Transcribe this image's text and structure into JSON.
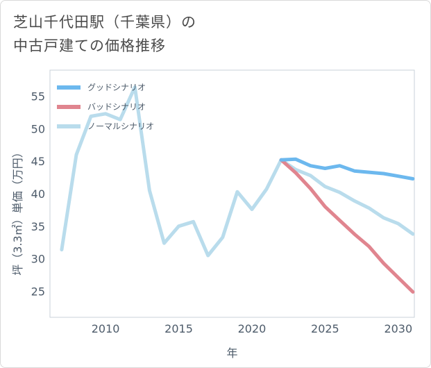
{
  "title_lines": [
    "芝山千代田駅（千葉県）の",
    "中古戸建ての価格推移"
  ],
  "chart_data": {
    "type": "line",
    "xlabel": "年",
    "ylabel": "坪（3.3㎡）単価（万円）",
    "xlim": [
      2006.2,
      2031.1
    ],
    "ylim": [
      21,
      59
    ],
    "xticks": [
      2010,
      2015,
      2020,
      2025,
      2030
    ],
    "yticks": [
      25,
      30,
      35,
      40,
      45,
      50,
      55
    ],
    "grid": true,
    "legend_position": "top-left",
    "series": [
      {
        "name": "グッドシナリオ",
        "color": "#6cb8ee",
        "x": [
          2022,
          2023,
          2024,
          2025,
          2026,
          2027,
          2028,
          2029,
          2030,
          2031
        ],
        "y": [
          45.2,
          45.3,
          44.3,
          43.9,
          44.3,
          43.5,
          43.3,
          43.1,
          42.7,
          42.3
        ]
      },
      {
        "name": "バッドシナリオ",
        "color": "#e0858f",
        "x": [
          2022,
          2023,
          2024,
          2025,
          2026,
          2027,
          2028,
          2029,
          2030,
          2031
        ],
        "y": [
          45.2,
          43.2,
          40.8,
          38.0,
          35.9,
          33.8,
          31.9,
          29.3,
          27.1,
          24.9
        ]
      },
      {
        "name": "ノーマルシナリオ",
        "color": "#b9dcec",
        "x": [
          2007,
          2008,
          2009,
          2010,
          2011,
          2012,
          2013,
          2014,
          2015,
          2016,
          2017,
          2018,
          2019,
          2020,
          2021,
          2022,
          2023,
          2024,
          2025,
          2026,
          2027,
          2028,
          2029,
          2030,
          2031
        ],
        "y": [
          31.4,
          46.0,
          51.9,
          52.3,
          51.4,
          56.4,
          40.5,
          32.4,
          35.0,
          35.7,
          30.5,
          33.3,
          40.3,
          37.6,
          40.7,
          45.2,
          43.7,
          42.8,
          41.1,
          40.2,
          38.9,
          37.8,
          36.3,
          35.4,
          33.8
        ]
      }
    ]
  }
}
